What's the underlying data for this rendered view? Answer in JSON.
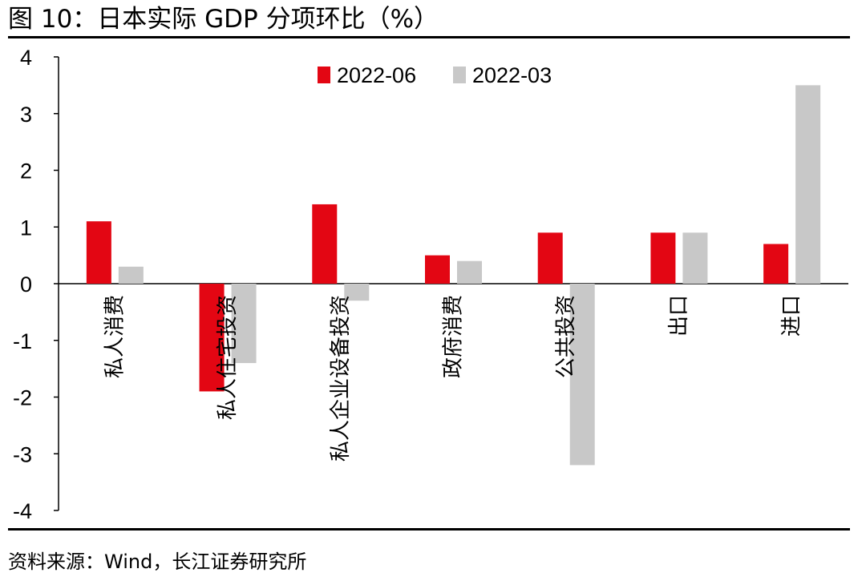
{
  "header": {
    "title": "图 10：日本实际 GDP 分项环比（%）"
  },
  "footer": {
    "source": "资料来源：Wind，长江证券研究所"
  },
  "colors": {
    "series_2022_06": "#e30613",
    "series_2022_03": "#c8c8c8"
  },
  "chart_data": {
    "type": "bar",
    "title": "日本实际 GDP 分项环比（%）",
    "xlabel": "",
    "ylabel": "",
    "ylim": [
      -4,
      4
    ],
    "yticks": [
      4,
      3,
      2,
      1,
      0,
      -1,
      -2,
      -3,
      -4
    ],
    "ytick_labels": [
      "4",
      "3",
      "2",
      "1",
      "0",
      "-1",
      "-2",
      "-3",
      "-4"
    ],
    "grid": false,
    "legend_position": "top-center",
    "categories": [
      "私人消费",
      "私人住宅投资",
      "私人企业设备投资",
      "政府消费",
      "公共投资",
      "出口",
      "进口"
    ],
    "series": [
      {
        "name": "2022-06",
        "color": "#e30613",
        "values": [
          1.1,
          -1.9,
          1.4,
          0.5,
          0.9,
          0.9,
          0.7
        ]
      },
      {
        "name": "2022-03",
        "color": "#c8c8c8",
        "values": [
          0.3,
          -1.4,
          -0.3,
          0.4,
          -3.2,
          0.9,
          3.5
        ]
      }
    ]
  }
}
